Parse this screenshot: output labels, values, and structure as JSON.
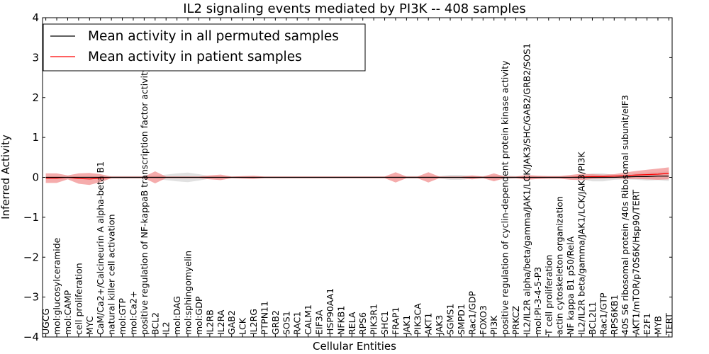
{
  "chart_data": {
    "type": "line",
    "title": "IL2 signaling events mediated by PI3K -- 408 samples",
    "xlabel": "Cellular Entities",
    "ylabel": "Inferred Activity",
    "ylim": [
      -4,
      4
    ],
    "yticks": [
      -4,
      -3,
      -2,
      -1,
      0,
      1,
      2,
      3,
      4
    ],
    "ytick_labels": [
      "−4",
      "−3",
      "−2",
      "−1",
      "0",
      "1",
      "2",
      "3",
      "4"
    ],
    "legend_position": "top-left",
    "categories": [
      "UGCG",
      "mol:glucosylceramide",
      "mol:CAMP",
      "cell proliferation",
      "MYC",
      "CaM/Ca2+/Calcineurin A alpha-beta B1",
      "natural killer cell activation",
      "mol:GTP",
      "mol:Ca2+",
      "positive regulation of NF-kappaB transcription factor activity",
      "BCL2",
      "IL2",
      "mol:DAG",
      "mol:sphingomyelin",
      "mol:GDP",
      "IL2RB",
      "IL2RA",
      "GAB2",
      "LCK",
      "IL2RG",
      "PTPN11",
      "GRB2",
      "SOS1",
      "RAC1",
      "CALM1",
      "EIF3A",
      "HSP90AA1",
      "NFKB1",
      "RELA",
      "RPS6",
      "PIK3R1",
      "SHC1",
      "FRAP1",
      "JAK1",
      "PIK3CA",
      "AKT1",
      "JAK3",
      "SGMS1",
      "SMPD1",
      "Rac1/GDP",
      "FOXO3",
      "PI3K",
      "positive regulation of cyclin-dependent protein kinase activity",
      "PRKCZ",
      "IL2/IL2R alpha/beta/gamma/JAK1/LCK/JAK3/SHC/GAB2/GRB2/SOS1",
      "mol:PI-3-4-5-P3",
      "T cell proliferation",
      "actin cytoskeleton organization",
      "NF kappa B1 p50/RelA",
      "IL2/IL2R beta/gamma/JAK1/LCK/JAK3/PI3K",
      "BCL2L1",
      "Rac1/GTP",
      "RPS6KB1",
      "40S S6 ribosomal protein /40s Ribosomal subunit/eIF3",
      "AKT1/mTOR/p70S6K/Hsp90/TERT",
      "E2F1",
      "MYB",
      "TERT"
    ],
    "series": [
      {
        "name": "Mean activity in all permuted samples",
        "color": "#000000",
        "band_color": "#c8c8c8",
        "values": [
          0,
          0,
          0,
          0,
          0,
          0,
          0,
          0,
          0,
          0,
          0,
          0,
          0,
          0,
          0,
          0,
          0,
          0,
          0,
          0,
          0,
          0,
          0,
          0,
          0,
          0,
          0,
          0,
          0,
          0,
          0,
          0,
          0,
          0,
          0,
          0,
          0,
          0,
          0,
          0,
          0,
          0,
          0,
          0,
          0,
          0,
          0,
          0,
          0,
          0,
          0,
          0,
          0,
          0.01,
          0.02,
          0.02,
          0.03,
          0.03
        ],
        "band": [
          0.02,
          0.02,
          0.02,
          0.02,
          0.03,
          0.03,
          0.03,
          0.03,
          0.03,
          0.03,
          0.04,
          0.07,
          0.1,
          0.12,
          0.08,
          0.03,
          0.02,
          0.02,
          0.02,
          0.02,
          0.02,
          0.02,
          0.02,
          0.02,
          0.02,
          0.02,
          0.02,
          0.02,
          0.02,
          0.02,
          0.02,
          0.02,
          0.03,
          0.03,
          0.03,
          0.03,
          0.03,
          0.06,
          0.06,
          0.03,
          0.03,
          0.05,
          0.05,
          0.03,
          0.03,
          0.03,
          0.03,
          0.03,
          0.03,
          0.05,
          0.1,
          0.1,
          0.06,
          0.06,
          0.08,
          0.1,
          0.1,
          0.12
        ]
      },
      {
        "name": "Mean activity in patient samples",
        "color": "#ff0000",
        "band_color": "#f08080",
        "values": [
          -0.02,
          -0.02,
          0,
          -0.03,
          -0.04,
          -0.02,
          0,
          0,
          0,
          0,
          0,
          0,
          0,
          0,
          0,
          0,
          0,
          0,
          0,
          0,
          0,
          0,
          0,
          0,
          0,
          0,
          0,
          0,
          0,
          0,
          0,
          0,
          0,
          0,
          0,
          0,
          0,
          0,
          0,
          0,
          0,
          0,
          0,
          0,
          0,
          0,
          0,
          0,
          0,
          0.01,
          0.02,
          0.02,
          0.03,
          0.04,
          0.06,
          0.07,
          0.08,
          0.1
        ],
        "band": [
          0.12,
          0.12,
          0.05,
          0.13,
          0.15,
          0.1,
          0.02,
          0.02,
          0.02,
          0.02,
          0.15,
          0.02,
          0.02,
          0.02,
          0.02,
          0.05,
          0.07,
          0.02,
          0.03,
          0.04,
          0.02,
          0.02,
          0.02,
          0.02,
          0.02,
          0.02,
          0.02,
          0.02,
          0.02,
          0.02,
          0.02,
          0.02,
          0.13,
          0.02,
          0.02,
          0.13,
          0.02,
          0.02,
          0.02,
          0.05,
          0.02,
          0.1,
          0.02,
          0.02,
          0.06,
          0.04,
          0.03,
          0.03,
          0.06,
          0.08,
          0.06,
          0.05,
          0.05,
          0.08,
          0.1,
          0.12,
          0.14,
          0.15
        ]
      }
    ]
  }
}
